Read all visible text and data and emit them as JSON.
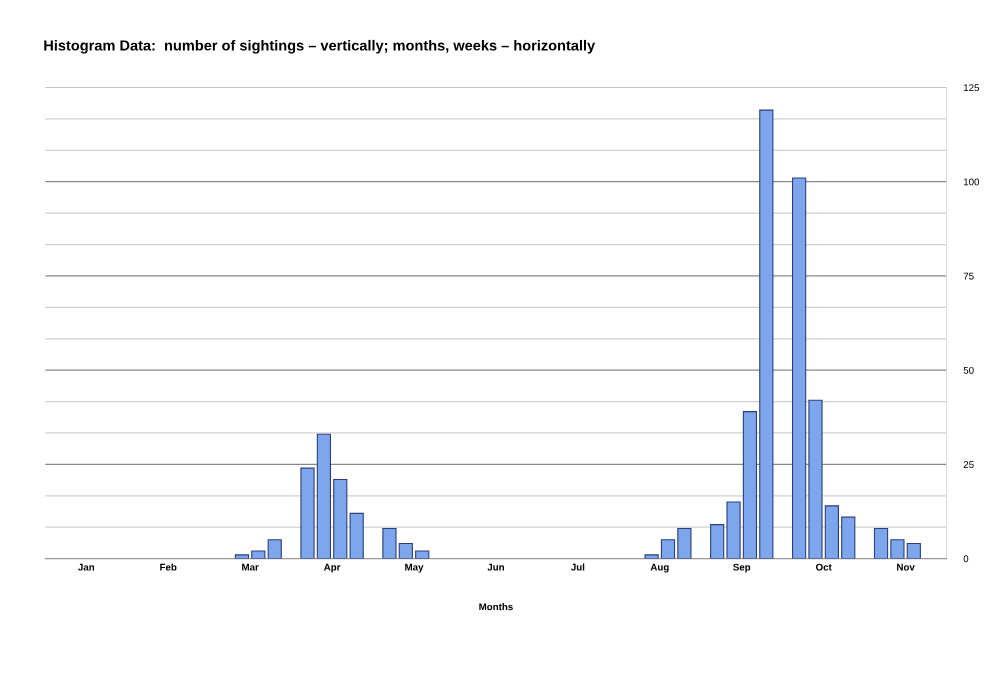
{
  "chart_data": {
    "type": "bar",
    "title": "Histogram Data:  number of sightings – vertically; months, weeks – horizontally",
    "xlabel": "Months",
    "categories": [
      "Jan",
      "Feb",
      "Mar",
      "Apr",
      "May",
      "Jun",
      "Jul",
      "Aug",
      "Sep",
      "Oct",
      "Nov"
    ],
    "series": [
      {
        "color": "#7ea6ec",
        "values": [
          0,
          0,
          0,
          24,
          8,
          0,
          0,
          0,
          9,
          101,
          8
        ]
      },
      {
        "color": "#7ea6ec",
        "values": [
          0,
          0,
          1,
          33,
          4,
          0,
          0,
          1,
          15,
          42,
          5
        ]
      },
      {
        "color": "#7ea6ec",
        "values": [
          0,
          0,
          2,
          21,
          2,
          0,
          0,
          5,
          39,
          14,
          4
        ]
      },
      {
        "color": "#7ea6ec",
        "values": [
          0,
          0,
          5,
          12,
          0,
          0,
          0,
          8,
          119,
          11,
          0
        ]
      }
    ],
    "ylim": [
      0,
      125
    ],
    "yticks": [
      0,
      {
        "value": 8.33,
        "label": null
      },
      {
        "value": 16.67,
        "label": null
      },
      25,
      {
        "value": 33.33,
        "label": null
      },
      {
        "value": 41.67,
        "label": null
      },
      50,
      {
        "value": 58.33,
        "label": null
      },
      {
        "value": 66.67,
        "label": null
      },
      75,
      {
        "value": 83.33,
        "label": null
      },
      {
        "value": 91.67,
        "label": null
      },
      100,
      {
        "value": 108.33,
        "label": null
      },
      {
        "value": 116.67,
        "label": null
      },
      125
    ],
    "grid": "y",
    "legend": false
  }
}
